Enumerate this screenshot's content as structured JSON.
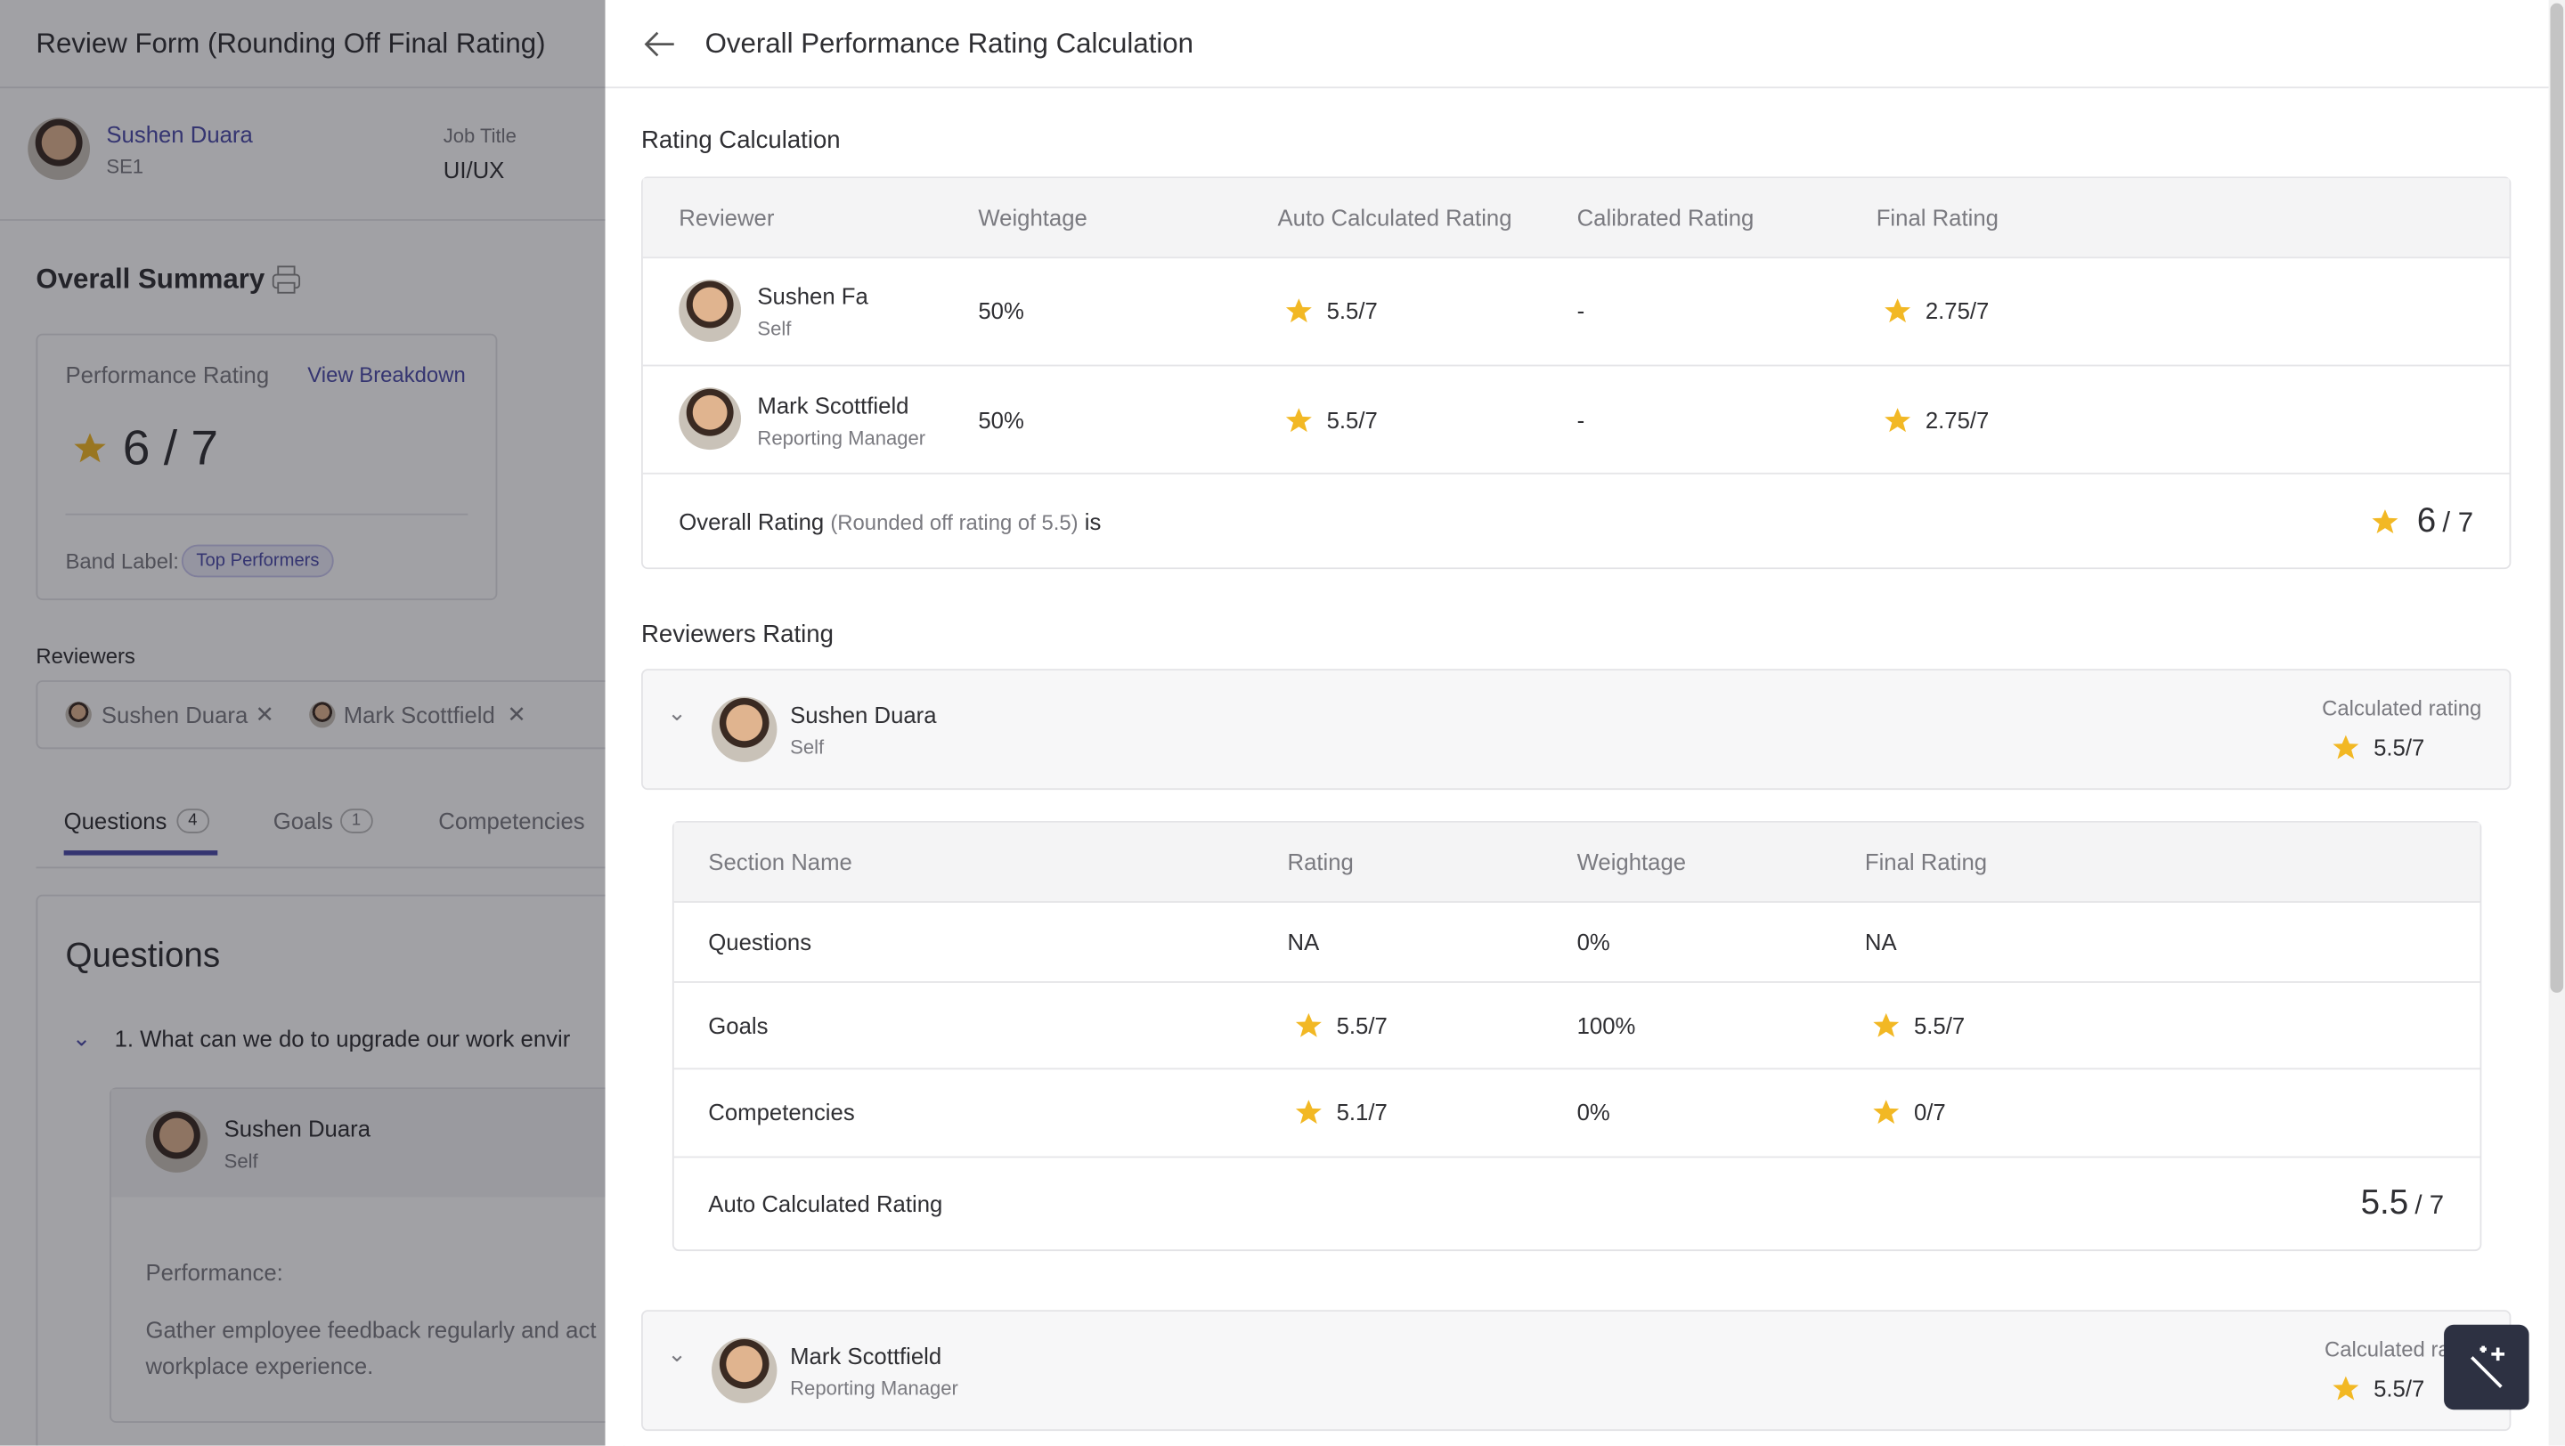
{
  "background": {
    "header": {
      "title": "Review Form (Rounding Off Final Rating)"
    },
    "employee": {
      "name": "Sushen Duara",
      "id": "SE1",
      "job_title_label": "Job Title",
      "job_title": "UI/UX"
    },
    "summary": {
      "title": "Overall Summary",
      "performance_label": "Performance Rating",
      "view_breakdown": "View Breakdown",
      "rating": "6 / 7",
      "band_label": "Band Label:",
      "band": "Top Performers"
    },
    "reviewers": {
      "label": "Reviewers",
      "names": [
        "Sushen Duara",
        "Mark Scottfield"
      ]
    },
    "tabs": [
      {
        "label": "Questions",
        "count": "4"
      },
      {
        "label": "Goals",
        "count": "1"
      },
      {
        "label": "Competencies"
      }
    ],
    "questions": {
      "title": "Questions",
      "question": "1. What can we do to upgrade our work envir",
      "answer": {
        "name": "Sushen Duara",
        "role": "Self",
        "heading": "Performance:",
        "lines": [
          "Gather employee feedback regularly and act",
          "workplace experience."
        ]
      }
    }
  },
  "panel": {
    "title": "Overall Performance Rating Calculation",
    "rating_calculation": {
      "title": "Rating Calculation",
      "columns": [
        "Reviewer",
        "Weightage",
        "Auto Calculated Rating",
        "Calibrated Rating",
        "Final Rating"
      ],
      "rows": [
        {
          "name": "Sushen Fa",
          "role": "Self",
          "weightage": "50%",
          "auto": "5.5/7",
          "calibrated": "-",
          "final": "2.75/7"
        },
        {
          "name": "Mark Scottfield",
          "role": "Reporting Manager",
          "weightage": "50%",
          "auto": "5.5/7",
          "calibrated": "-",
          "final": "2.75/7"
        }
      ],
      "overall": {
        "label": "Overall Rating",
        "note": "(Rounded off rating of 5.5)",
        "suffix": "is",
        "rating": "6",
        "max": "/ 7"
      }
    },
    "reviewers_rating": {
      "title": "Reviewers Rating",
      "reviewers": [
        {
          "name": "Sushen Duara",
          "role": "Self",
          "calc_label": "Calculated rating",
          "calc": "5.5/7",
          "sections": {
            "columns": [
              "Section Name",
              "Rating",
              "Weightage",
              "Final Rating"
            ],
            "rows": [
              [
                "Questions",
                "NA",
                "0%",
                "NA"
              ],
              [
                "Goals",
                "5.5/7",
                "100%",
                "5.5/7"
              ],
              [
                "Competencies",
                "5.1/7",
                "0%",
                "0/7"
              ]
            ],
            "total_label": "Auto Calculated Rating",
            "total": "5.5",
            "total_max": "/ 7"
          }
        },
        {
          "name": "Mark Scottfield",
          "role": "Reporting Manager",
          "calc_label": "Calculated rating",
          "calc": "5.5/7"
        }
      ]
    }
  }
}
